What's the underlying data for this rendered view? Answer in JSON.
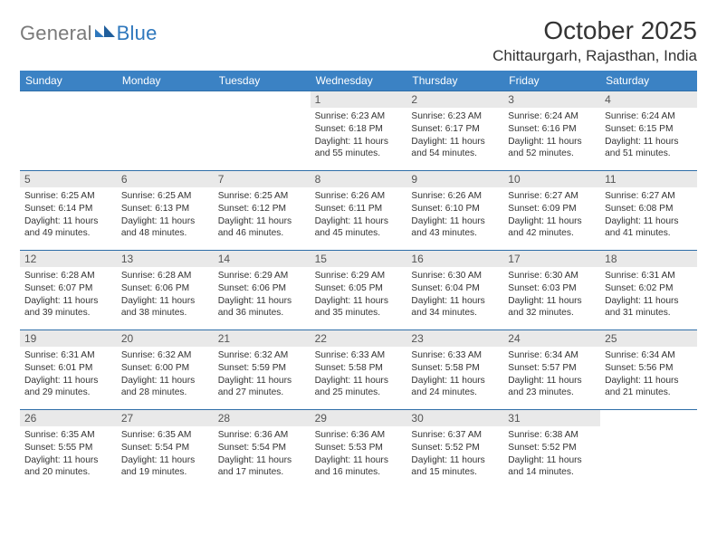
{
  "branding": {
    "word1": "General",
    "word2": "Blue",
    "logo_color": "#2f78bd",
    "text1_color": "#7a7a7a"
  },
  "header": {
    "title": "October 2025",
    "location": "Chittaurgarh, Rajasthan, India"
  },
  "colors": {
    "header_bg": "#3b82c4",
    "rule": "#2f6ea8",
    "daynum_bg": "#e9e9e9"
  },
  "weekdays": [
    "Sunday",
    "Monday",
    "Tuesday",
    "Wednesday",
    "Thursday",
    "Friday",
    "Saturday"
  ],
  "cells": [
    {
      "day": "",
      "sunrise": "",
      "sunset": "",
      "daylight": ""
    },
    {
      "day": "",
      "sunrise": "",
      "sunset": "",
      "daylight": ""
    },
    {
      "day": "",
      "sunrise": "",
      "sunset": "",
      "daylight": ""
    },
    {
      "day": "1",
      "sunrise": "Sunrise: 6:23 AM",
      "sunset": "Sunset: 6:18 PM",
      "daylight": "Daylight: 11 hours and 55 minutes."
    },
    {
      "day": "2",
      "sunrise": "Sunrise: 6:23 AM",
      "sunset": "Sunset: 6:17 PM",
      "daylight": "Daylight: 11 hours and 54 minutes."
    },
    {
      "day": "3",
      "sunrise": "Sunrise: 6:24 AM",
      "sunset": "Sunset: 6:16 PM",
      "daylight": "Daylight: 11 hours and 52 minutes."
    },
    {
      "day": "4",
      "sunrise": "Sunrise: 6:24 AM",
      "sunset": "Sunset: 6:15 PM",
      "daylight": "Daylight: 11 hours and 51 minutes."
    },
    {
      "day": "5",
      "sunrise": "Sunrise: 6:25 AM",
      "sunset": "Sunset: 6:14 PM",
      "daylight": "Daylight: 11 hours and 49 minutes."
    },
    {
      "day": "6",
      "sunrise": "Sunrise: 6:25 AM",
      "sunset": "Sunset: 6:13 PM",
      "daylight": "Daylight: 11 hours and 48 minutes."
    },
    {
      "day": "7",
      "sunrise": "Sunrise: 6:25 AM",
      "sunset": "Sunset: 6:12 PM",
      "daylight": "Daylight: 11 hours and 46 minutes."
    },
    {
      "day": "8",
      "sunrise": "Sunrise: 6:26 AM",
      "sunset": "Sunset: 6:11 PM",
      "daylight": "Daylight: 11 hours and 45 minutes."
    },
    {
      "day": "9",
      "sunrise": "Sunrise: 6:26 AM",
      "sunset": "Sunset: 6:10 PM",
      "daylight": "Daylight: 11 hours and 43 minutes."
    },
    {
      "day": "10",
      "sunrise": "Sunrise: 6:27 AM",
      "sunset": "Sunset: 6:09 PM",
      "daylight": "Daylight: 11 hours and 42 minutes."
    },
    {
      "day": "11",
      "sunrise": "Sunrise: 6:27 AM",
      "sunset": "Sunset: 6:08 PM",
      "daylight": "Daylight: 11 hours and 41 minutes."
    },
    {
      "day": "12",
      "sunrise": "Sunrise: 6:28 AM",
      "sunset": "Sunset: 6:07 PM",
      "daylight": "Daylight: 11 hours and 39 minutes."
    },
    {
      "day": "13",
      "sunrise": "Sunrise: 6:28 AM",
      "sunset": "Sunset: 6:06 PM",
      "daylight": "Daylight: 11 hours and 38 minutes."
    },
    {
      "day": "14",
      "sunrise": "Sunrise: 6:29 AM",
      "sunset": "Sunset: 6:06 PM",
      "daylight": "Daylight: 11 hours and 36 minutes."
    },
    {
      "day": "15",
      "sunrise": "Sunrise: 6:29 AM",
      "sunset": "Sunset: 6:05 PM",
      "daylight": "Daylight: 11 hours and 35 minutes."
    },
    {
      "day": "16",
      "sunrise": "Sunrise: 6:30 AM",
      "sunset": "Sunset: 6:04 PM",
      "daylight": "Daylight: 11 hours and 34 minutes."
    },
    {
      "day": "17",
      "sunrise": "Sunrise: 6:30 AM",
      "sunset": "Sunset: 6:03 PM",
      "daylight": "Daylight: 11 hours and 32 minutes."
    },
    {
      "day": "18",
      "sunrise": "Sunrise: 6:31 AM",
      "sunset": "Sunset: 6:02 PM",
      "daylight": "Daylight: 11 hours and 31 minutes."
    },
    {
      "day": "19",
      "sunrise": "Sunrise: 6:31 AM",
      "sunset": "Sunset: 6:01 PM",
      "daylight": "Daylight: 11 hours and 29 minutes."
    },
    {
      "day": "20",
      "sunrise": "Sunrise: 6:32 AM",
      "sunset": "Sunset: 6:00 PM",
      "daylight": "Daylight: 11 hours and 28 minutes."
    },
    {
      "day": "21",
      "sunrise": "Sunrise: 6:32 AM",
      "sunset": "Sunset: 5:59 PM",
      "daylight": "Daylight: 11 hours and 27 minutes."
    },
    {
      "day": "22",
      "sunrise": "Sunrise: 6:33 AM",
      "sunset": "Sunset: 5:58 PM",
      "daylight": "Daylight: 11 hours and 25 minutes."
    },
    {
      "day": "23",
      "sunrise": "Sunrise: 6:33 AM",
      "sunset": "Sunset: 5:58 PM",
      "daylight": "Daylight: 11 hours and 24 minutes."
    },
    {
      "day": "24",
      "sunrise": "Sunrise: 6:34 AM",
      "sunset": "Sunset: 5:57 PM",
      "daylight": "Daylight: 11 hours and 23 minutes."
    },
    {
      "day": "25",
      "sunrise": "Sunrise: 6:34 AM",
      "sunset": "Sunset: 5:56 PM",
      "daylight": "Daylight: 11 hours and 21 minutes."
    },
    {
      "day": "26",
      "sunrise": "Sunrise: 6:35 AM",
      "sunset": "Sunset: 5:55 PM",
      "daylight": "Daylight: 11 hours and 20 minutes."
    },
    {
      "day": "27",
      "sunrise": "Sunrise: 6:35 AM",
      "sunset": "Sunset: 5:54 PM",
      "daylight": "Daylight: 11 hours and 19 minutes."
    },
    {
      "day": "28",
      "sunrise": "Sunrise: 6:36 AM",
      "sunset": "Sunset: 5:54 PM",
      "daylight": "Daylight: 11 hours and 17 minutes."
    },
    {
      "day": "29",
      "sunrise": "Sunrise: 6:36 AM",
      "sunset": "Sunset: 5:53 PM",
      "daylight": "Daylight: 11 hours and 16 minutes."
    },
    {
      "day": "30",
      "sunrise": "Sunrise: 6:37 AM",
      "sunset": "Sunset: 5:52 PM",
      "daylight": "Daylight: 11 hours and 15 minutes."
    },
    {
      "day": "31",
      "sunrise": "Sunrise: 6:38 AM",
      "sunset": "Sunset: 5:52 PM",
      "daylight": "Daylight: 11 hours and 14 minutes."
    },
    {
      "day": "",
      "sunrise": "",
      "sunset": "",
      "daylight": ""
    }
  ]
}
